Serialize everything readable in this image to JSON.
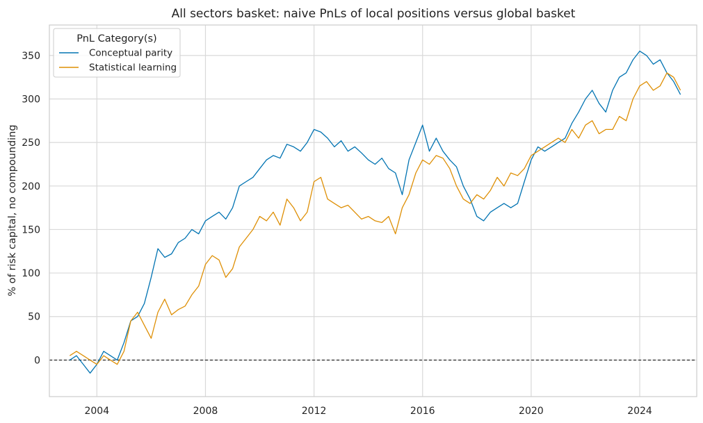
{
  "chart_data": {
    "type": "line",
    "title": "All sectors basket: naive PnLs of local positions versus global basket",
    "xlabel": "",
    "ylabel": "% of risk capital, no compounding",
    "xlim": [
      2002.25,
      2026.1
    ],
    "ylim": [
      -42,
      385
    ],
    "x_ticks": [
      2004,
      2008,
      2012,
      2016,
      2020,
      2024
    ],
    "y_ticks": [
      0,
      50,
      100,
      150,
      200,
      250,
      300,
      350
    ],
    "grid": true,
    "zero_line": true,
    "legend": {
      "title": "PnL Category(s)",
      "placement": "top-left"
    },
    "series": [
      {
        "name": "Conceptual parity",
        "color": "#0173b2",
        "x": [
          2003.0,
          2003.25,
          2003.5,
          2003.75,
          2004.0,
          2004.25,
          2004.5,
          2004.75,
          2005.0,
          2005.25,
          2005.5,
          2005.75,
          2006.0,
          2006.25,
          2006.5,
          2006.75,
          2007.0,
          2007.25,
          2007.5,
          2007.75,
          2008.0,
          2008.25,
          2008.5,
          2008.75,
          2009.0,
          2009.25,
          2009.5,
          2009.75,
          2010.0,
          2010.25,
          2010.5,
          2010.75,
          2011.0,
          2011.25,
          2011.5,
          2011.75,
          2012.0,
          2012.25,
          2012.5,
          2012.75,
          2013.0,
          2013.25,
          2013.5,
          2013.75,
          2014.0,
          2014.25,
          2014.5,
          2014.75,
          2015.0,
          2015.25,
          2015.5,
          2015.75,
          2016.0,
          2016.25,
          2016.5,
          2016.75,
          2017.0,
          2017.25,
          2017.5,
          2017.75,
          2018.0,
          2018.25,
          2018.5,
          2018.75,
          2019.0,
          2019.25,
          2019.5,
          2019.75,
          2020.0,
          2020.25,
          2020.5,
          2020.75,
          2021.0,
          2021.25,
          2021.5,
          2021.75,
          2022.0,
          2022.25,
          2022.5,
          2022.75,
          2023.0,
          2023.25,
          2023.5,
          2023.75,
          2024.0,
          2024.25,
          2024.5,
          2024.75,
          2025.0,
          2025.25,
          2025.5
        ],
        "values": [
          0,
          5,
          -5,
          -15,
          -5,
          10,
          5,
          0,
          20,
          45,
          50,
          65,
          95,
          128,
          118,
          122,
          135,
          140,
          150,
          145,
          160,
          165,
          170,
          162,
          175,
          200,
          205,
          210,
          220,
          230,
          235,
          232,
          248,
          245,
          240,
          250,
          265,
          262,
          255,
          245,
          252,
          240,
          245,
          238,
          230,
          225,
          232,
          220,
          215,
          190,
          230,
          250,
          270,
          240,
          255,
          240,
          230,
          222,
          200,
          185,
          165,
          160,
          170,
          175,
          180,
          175,
          180,
          205,
          230,
          245,
          240,
          245,
          250,
          255,
          272,
          285,
          300,
          310,
          295,
          285,
          310,
          325,
          330,
          345,
          355,
          350,
          340,
          345,
          330,
          320,
          305
        ]
      },
      {
        "name": "Statistical learning",
        "color": "#de8f05",
        "x": [
          2003.0,
          2003.25,
          2003.5,
          2003.75,
          2004.0,
          2004.25,
          2004.5,
          2004.75,
          2005.0,
          2005.25,
          2005.5,
          2005.75,
          2006.0,
          2006.25,
          2006.5,
          2006.75,
          2007.0,
          2007.25,
          2007.5,
          2007.75,
          2008.0,
          2008.25,
          2008.5,
          2008.75,
          2009.0,
          2009.25,
          2009.5,
          2009.75,
          2010.0,
          2010.25,
          2010.5,
          2010.75,
          2011.0,
          2011.25,
          2011.5,
          2011.75,
          2012.0,
          2012.25,
          2012.5,
          2012.75,
          2013.0,
          2013.25,
          2013.5,
          2013.75,
          2014.0,
          2014.25,
          2014.5,
          2014.75,
          2015.0,
          2015.25,
          2015.5,
          2015.75,
          2016.0,
          2016.25,
          2016.5,
          2016.75,
          2017.0,
          2017.25,
          2017.5,
          2017.75,
          2018.0,
          2018.25,
          2018.5,
          2018.75,
          2019.0,
          2019.25,
          2019.5,
          2019.75,
          2020.0,
          2020.25,
          2020.5,
          2020.75,
          2021.0,
          2021.25,
          2021.5,
          2021.75,
          2022.0,
          2022.25,
          2022.5,
          2022.75,
          2023.0,
          2023.25,
          2023.5,
          2023.75,
          2024.0,
          2024.25,
          2024.5,
          2024.75,
          2025.0,
          2025.25,
          2025.5
        ],
        "values": [
          5,
          10,
          5,
          0,
          -5,
          5,
          0,
          -5,
          10,
          45,
          55,
          40,
          25,
          55,
          70,
          52,
          58,
          62,
          75,
          85,
          110,
          120,
          115,
          95,
          105,
          130,
          140,
          150,
          165,
          160,
          170,
          155,
          185,
          175,
          160,
          170,
          205,
          210,
          185,
          180,
          175,
          178,
          170,
          162,
          165,
          160,
          158,
          165,
          145,
          175,
          190,
          215,
          230,
          225,
          235,
          232,
          220,
          200,
          185,
          180,
          190,
          185,
          195,
          210,
          200,
          215,
          212,
          220,
          235,
          240,
          245,
          250,
          255,
          250,
          265,
          255,
          270,
          275,
          260,
          265,
          265,
          280,
          275,
          300,
          315,
          320,
          310,
          315,
          330,
          325,
          310
        ]
      }
    ]
  }
}
